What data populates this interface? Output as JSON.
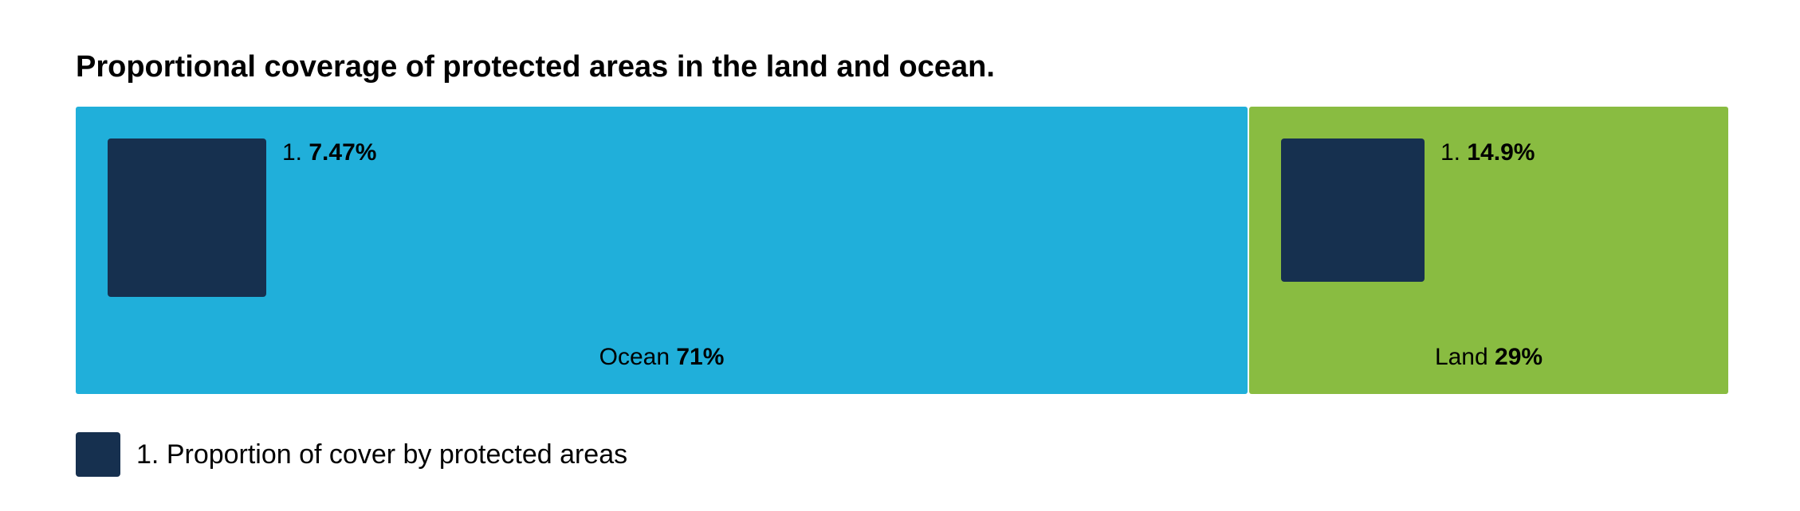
{
  "title": "Proportional coverage of protected areas in the land and ocean.",
  "colors": {
    "ocean": "#20afda",
    "land": "#89bc41",
    "protected": "#16304f",
    "divider": "#ffffff"
  },
  "chart_data": {
    "type": "treemap",
    "title": "Proportional coverage of protected areas in the land and ocean.",
    "total_percent": 100,
    "panels": [
      {
        "key": "ocean",
        "name": "Ocean",
        "share_label": "71%",
        "share": 71,
        "protected_index": "1.",
        "protected_label": "7.47%",
        "protected_share": 7.47
      },
      {
        "key": "land",
        "name": "Land",
        "share_label": "29%",
        "share": 29,
        "protected_index": "1.",
        "protected_label": "14.9%",
        "protected_share": 14.9
      }
    ],
    "legend": [
      {
        "index": "1.",
        "label": "Proportion of cover by protected areas"
      }
    ]
  },
  "legend": {
    "index": "1.",
    "label": "Proportion of cover by protected areas"
  }
}
